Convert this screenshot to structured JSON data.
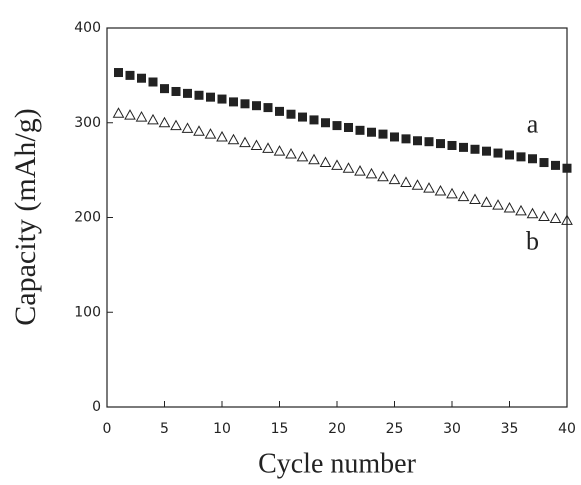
{
  "chart_data": {
    "type": "scatter",
    "x_label": "Cycle number",
    "y_label": "Capacity (mAh/g)",
    "x": [
      1,
      2,
      3,
      4,
      5,
      6,
      7,
      8,
      9,
      10,
      11,
      12,
      13,
      14,
      15,
      16,
      17,
      18,
      19,
      20,
      21,
      22,
      23,
      24,
      25,
      26,
      27,
      28,
      29,
      30,
      31,
      32,
      33,
      34,
      35,
      36,
      37,
      38,
      39,
      40
    ],
    "series": [
      {
        "name": "a",
        "color": "#222222",
        "marker": "square",
        "filled": true,
        "values": [
          353,
          350,
          347,
          343,
          336,
          333,
          331,
          329,
          327,
          325,
          322,
          320,
          318,
          316,
          312,
          309,
          306,
          303,
          300,
          297,
          295,
          292,
          290,
          288,
          285,
          283,
          281,
          280,
          278,
          276,
          274,
          272,
          270,
          268,
          266,
          264,
          262,
          258,
          255,
          252
        ]
      },
      {
        "name": "b",
        "color": "#222222",
        "marker": "triangle",
        "filled": false,
        "values": [
          310,
          308,
          306,
          303,
          300,
          297,
          294,
          291,
          288,
          285,
          282,
          279,
          276,
          273,
          270,
          267,
          264,
          261,
          258,
          255,
          252,
          249,
          246,
          243,
          240,
          237,
          234,
          231,
          228,
          225,
          222,
          219,
          216,
          213,
          210,
          207,
          204,
          201,
          199,
          197
        ]
      }
    ],
    "xlim": [
      0,
      40
    ],
    "xticks": [
      0,
      5,
      10,
      15,
      20,
      25,
      30,
      35,
      40
    ],
    "ylim": [
      0,
      400
    ],
    "yticks": [
      0,
      100,
      200,
      300,
      400
    ]
  }
}
